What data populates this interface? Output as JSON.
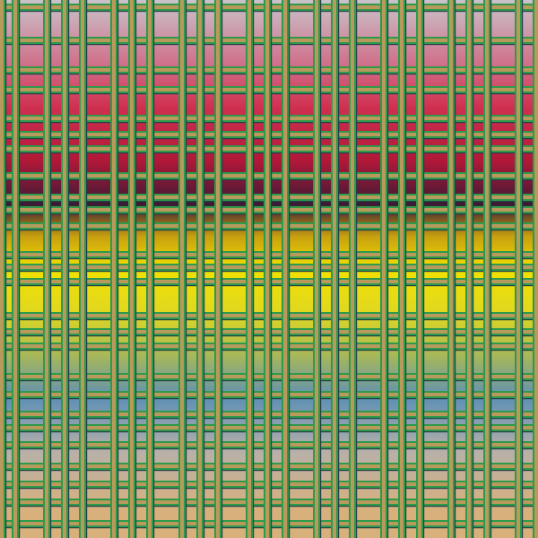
{
  "colors": {
    "bar_fill": "#b89a5c",
    "bar_edge": "#2e9a4a",
    "bar_shadow": "#24404a",
    "gradient_stops": [
      "#c9c3c9",
      "#d0708a",
      "#d03050",
      "#b01838",
      "#3a1a34",
      "#c8a010",
      "#f2e000",
      "#e0d820",
      "#a8b858",
      "#5f90b4",
      "#b8b0a8",
      "#d8b07c"
    ]
  }
}
